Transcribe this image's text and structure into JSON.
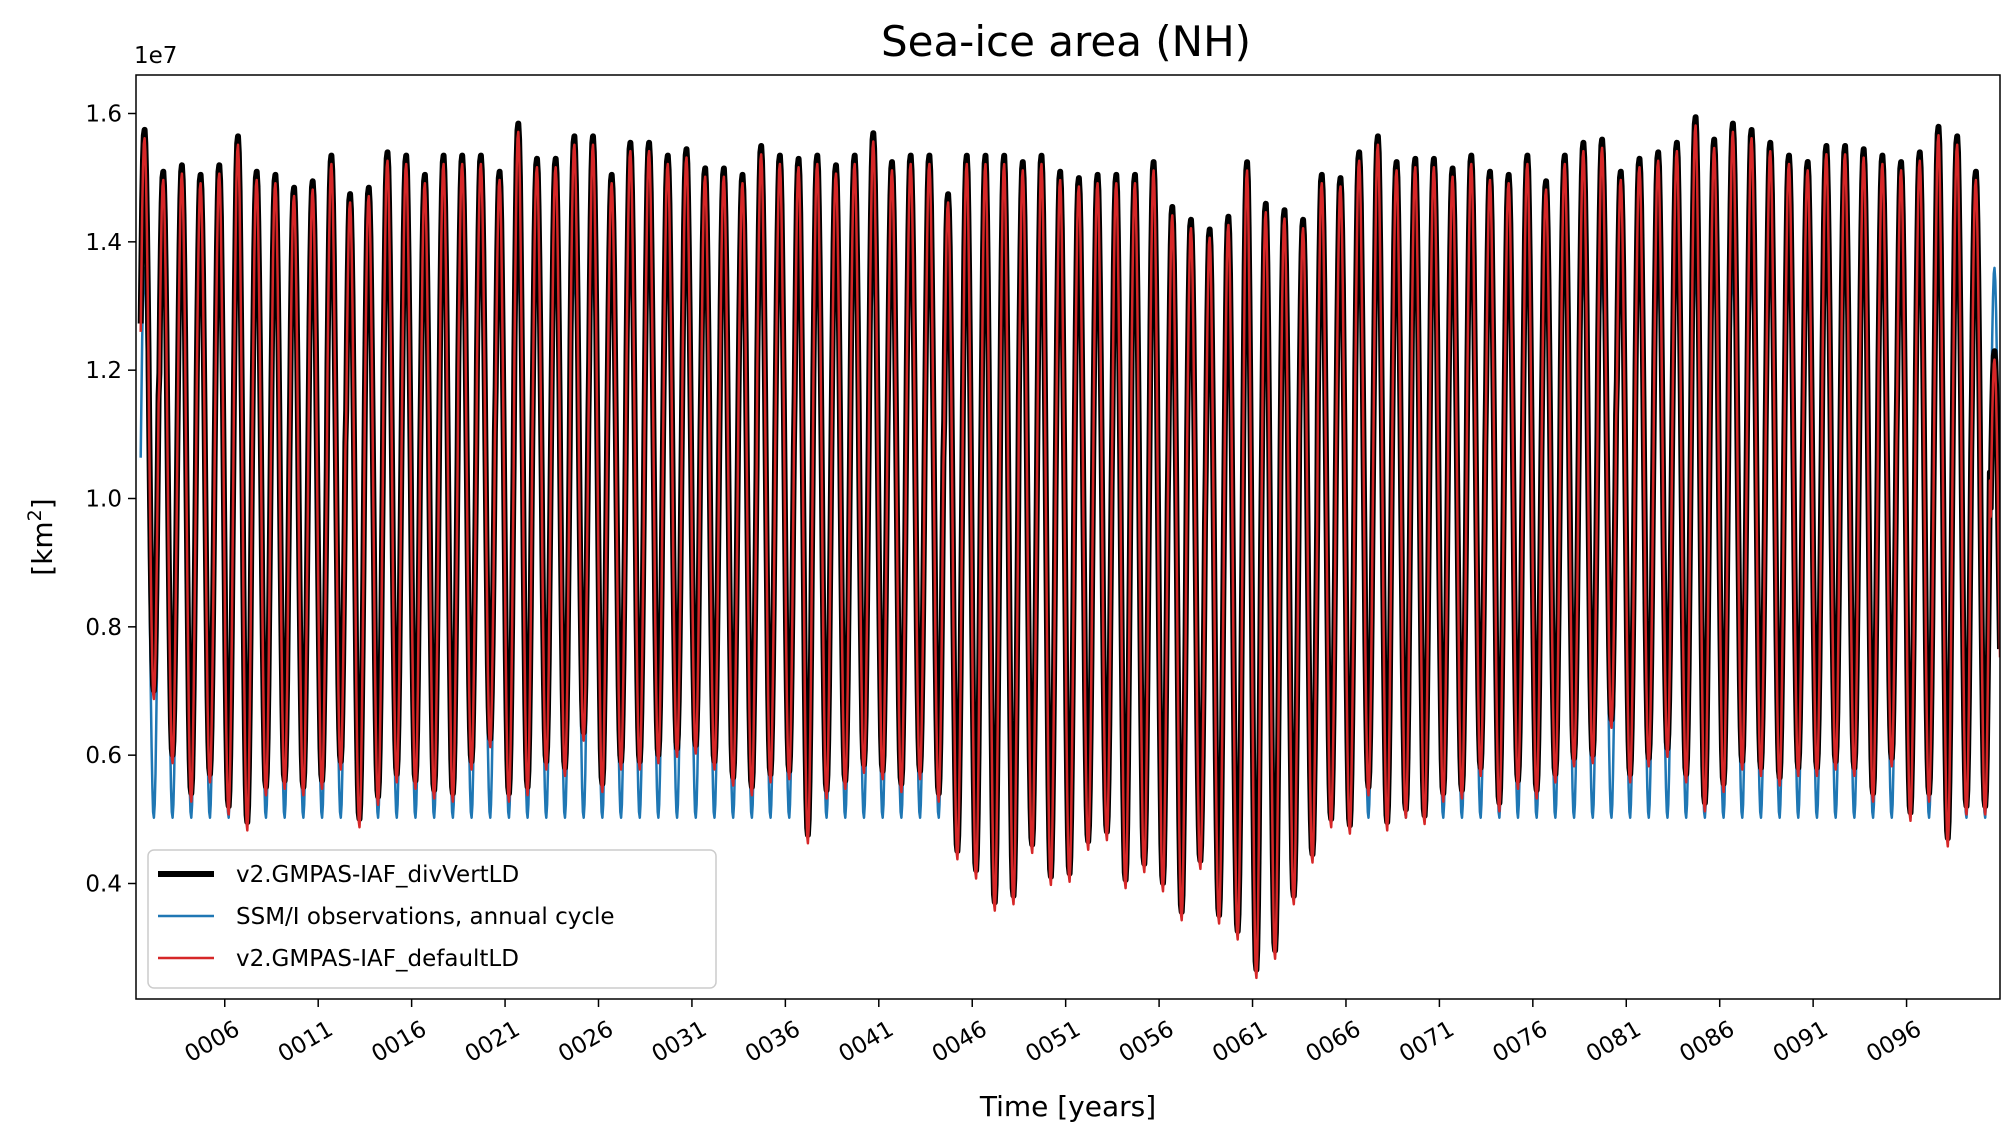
{
  "chart_data": {
    "type": "line",
    "title": "Sea-ice area (NH)",
    "xlabel": "Time [years]",
    "ylabel_base": "[km",
    "ylabel_sup": "2",
    "ylabel_close": "]",
    "y_offset_text": "1e7",
    "xlim": [
      0.75,
      100.5
    ],
    "ylim": [
      2200000,
      16600000
    ],
    "x_ticks": [
      {
        "x": 5.5,
        "label": "0006"
      },
      {
        "x": 10.5,
        "label": "0011"
      },
      {
        "x": 15.5,
        "label": "0016"
      },
      {
        "x": 20.5,
        "label": "0021"
      },
      {
        "x": 25.5,
        "label": "0026"
      },
      {
        "x": 30.5,
        "label": "0031"
      },
      {
        "x": 35.5,
        "label": "0036"
      },
      {
        "x": 40.5,
        "label": "0041"
      },
      {
        "x": 45.5,
        "label": "0046"
      },
      {
        "x": 50.5,
        "label": "0051"
      },
      {
        "x": 55.5,
        "label": "0056"
      },
      {
        "x": 60.5,
        "label": "0061"
      },
      {
        "x": 65.5,
        "label": "0066"
      },
      {
        "x": 70.5,
        "label": "0071"
      },
      {
        "x": 75.5,
        "label": "0076"
      },
      {
        "x": 80.5,
        "label": "0081"
      },
      {
        "x": 85.5,
        "label": "0086"
      },
      {
        "x": 90.5,
        "label": "0091"
      },
      {
        "x": 95.5,
        "label": "0096"
      }
    ],
    "y_ticks": [
      {
        "y": 4000000,
        "label": "0.4"
      },
      {
        "y": 6000000,
        "label": "0.6"
      },
      {
        "y": 8000000,
        "label": "0.8"
      },
      {
        "y": 10000000,
        "label": "1.0"
      },
      {
        "y": 12000000,
        "label": "1.2"
      },
      {
        "y": 14000000,
        "label": "1.4"
      },
      {
        "y": 16000000,
        "label": "1.6"
      }
    ],
    "legend_position": "lower-left",
    "series": [
      {
        "name": "v2.GMPAS-IAF_divVertLD",
        "color": "#000000",
        "width": 6,
        "annual_max": [
          15.75,
          15.1,
          15.2,
          15.05,
          15.2,
          15.65,
          15.1,
          15.05,
          14.85,
          14.95,
          15.35,
          14.75,
          14.85,
          15.4,
          15.35,
          15.05,
          15.35,
          15.35,
          15.35,
          15.1,
          15.85,
          15.3,
          15.3,
          15.65,
          15.65,
          15.05,
          15.55,
          15.55,
          15.35,
          15.45,
          15.15,
          15.15,
          15.05,
          15.5,
          15.35,
          15.3,
          15.35,
          15.2,
          15.35,
          15.7,
          15.25,
          15.35,
          15.35,
          14.75,
          15.35,
          15.35,
          15.35,
          15.25,
          15.35,
          15.1,
          15.0,
          15.05,
          15.05,
          15.05,
          15.25,
          14.55,
          14.35,
          14.2,
          14.4,
          15.25,
          14.6,
          14.5,
          14.35,
          15.05,
          15.0,
          15.4,
          15.65,
          15.25,
          15.3,
          15.3,
          15.15,
          15.35,
          15.1,
          15.05,
          15.35,
          14.95,
          15.35,
          15.55,
          15.6,
          15.1,
          15.3,
          15.4,
          15.55,
          15.95,
          15.6,
          15.85,
          15.75,
          15.55,
          15.35,
          15.25,
          15.5,
          15.5,
          15.45,
          15.35,
          15.25,
          15.4,
          15.8,
          15.65,
          15.1,
          12.3
        ],
        "annual_min": [
          7.0,
          6.0,
          5.4,
          5.7,
          5.2,
          4.95,
          5.5,
          5.6,
          5.5,
          5.6,
          5.9,
          5.0,
          5.35,
          5.7,
          5.6,
          5.45,
          5.4,
          5.9,
          6.25,
          5.4,
          5.5,
          5.9,
          5.8,
          6.35,
          5.55,
          5.9,
          5.9,
          6.0,
          6.1,
          6.15,
          5.9,
          5.65,
          5.5,
          5.7,
          5.75,
          4.75,
          5.45,
          5.6,
          5.85,
          5.75,
          5.55,
          5.75,
          5.4,
          4.5,
          4.2,
          3.7,
          3.8,
          4.6,
          4.1,
          4.15,
          4.65,
          4.8,
          4.05,
          4.3,
          4.0,
          3.55,
          4.35,
          3.5,
          3.25,
          2.65,
          2.95,
          3.8,
          4.45,
          5.0,
          4.9,
          5.5,
          4.95,
          5.15,
          5.05,
          5.4,
          5.45,
          5.8,
          5.25,
          5.6,
          5.45,
          5.7,
          5.95,
          6.0,
          6.55,
          5.7,
          5.95,
          6.1,
          5.7,
          5.25,
          5.55,
          5.9,
          5.8,
          5.65,
          5.8,
          5.8,
          5.9,
          5.8,
          5.4,
          5.95,
          5.1,
          5.4,
          4.7,
          5.2,
          5.2,
          5.2
        ]
      },
      {
        "name": "SSM/I observations, annual cycle",
        "color": "#1f77b4",
        "width": 2.5,
        "annual_max_value": 13600000,
        "annual_min_value": 5020000
      },
      {
        "name": "v2.GMPAS-IAF_defaultLD",
        "color": "#d62728",
        "width": 2.5,
        "offset": -130000
      }
    ]
  }
}
